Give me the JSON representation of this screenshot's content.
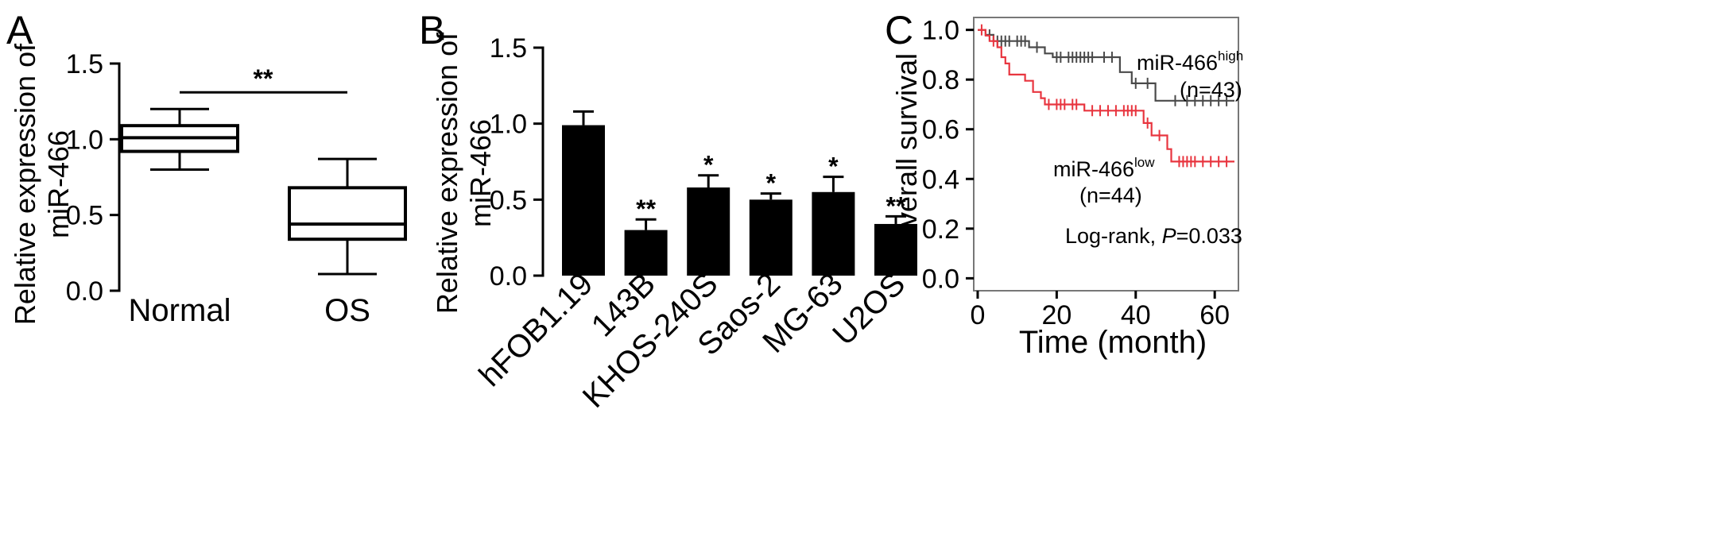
{
  "chart_data": [
    {
      "panel": "A",
      "type": "box",
      "ylabel_line1": "Relative expression of",
      "ylabel_line2": "miR-466",
      "ylim": [
        0,
        1.5
      ],
      "yticks": [
        "0.0",
        "0.5",
        "1.0",
        "1.5"
      ],
      "yticks_values": [
        0,
        0.5,
        1.0,
        1.5
      ],
      "categories": [
        "Normal",
        "OS"
      ],
      "boxes": [
        {
          "name": "Normal",
          "min": 0.8,
          "q1": 0.92,
          "median": 1.01,
          "q3": 1.09,
          "max": 1.2
        },
        {
          "name": "OS",
          "min": 0.11,
          "q1": 0.34,
          "median": 0.44,
          "q3": 0.68,
          "max": 0.87
        }
      ],
      "significance": {
        "label": "**",
        "y": 1.31
      }
    },
    {
      "panel": "B",
      "type": "bar",
      "ylabel_line1": "Relative expression of",
      "ylabel_line2": "miR-466",
      "ylim": [
        0,
        1.5
      ],
      "yticks": [
        "0.0",
        "0.5",
        "1.0",
        "1.5"
      ],
      "yticks_values": [
        0,
        0.5,
        1.0,
        1.5
      ],
      "categories": [
        "hFOB1.19",
        "143B",
        "KHOS-240S",
        "Saos-2",
        "MG-63",
        "U2OS"
      ],
      "values": [
        0.99,
        0.3,
        0.58,
        0.5,
        0.55,
        0.34
      ],
      "errors": [
        0.09,
        0.07,
        0.08,
        0.04,
        0.1,
        0.05
      ],
      "significance": [
        "",
        "**",
        "*",
        "*",
        "*",
        "**"
      ]
    },
    {
      "panel": "C",
      "type": "line",
      "ylabel": "Overall survival",
      "xlabel": "Time (month)",
      "xlim": [
        -1,
        66
      ],
      "ylim": [
        -0.05,
        1.05
      ],
      "xticks": [
        "0",
        "20",
        "40",
        "60"
      ],
      "xticks_values": [
        0,
        20,
        40,
        60
      ],
      "yticks": [
        "0.0",
        "0.2",
        "0.4",
        "0.6",
        "0.8",
        "1.0"
      ],
      "yticks_values": [
        0,
        0.2,
        0.4,
        0.6,
        0.8,
        1.0
      ],
      "series": [
        {
          "name_base": "miR-466",
          "name_sup": "high",
          "n_label": "(n=43)",
          "color": "#4a4a4a",
          "steps": [
            [
              0,
              1.0
            ],
            [
              2,
              0.98
            ],
            [
              4,
              0.955
            ],
            [
              13,
              0.93
            ],
            [
              17,
              0.905
            ],
            [
              19,
              0.89
            ],
            [
              36,
              0.83
            ],
            [
              39,
              0.785
            ],
            [
              45,
              0.715
            ],
            [
              65,
              0.715
            ]
          ],
          "censors": [
            3,
            5,
            6,
            7,
            8,
            10,
            11,
            12,
            15,
            20,
            21,
            23,
            24,
            25,
            26,
            27,
            28,
            29,
            32,
            34,
            40,
            43,
            50,
            53,
            55,
            57,
            59,
            61,
            63
          ]
        },
        {
          "name_base": "miR-466",
          "name_sup": "low",
          "n_label": "(n=44)",
          "color": "#e8353f",
          "steps": [
            [
              0,
              1.0
            ],
            [
              2,
              0.977
            ],
            [
              3,
              0.955
            ],
            [
              5,
              0.93
            ],
            [
              6,
              0.89
            ],
            [
              7,
              0.865
            ],
            [
              8,
              0.82
            ],
            [
              12,
              0.795
            ],
            [
              14,
              0.75
            ],
            [
              16,
              0.725
            ],
            [
              17,
              0.7
            ],
            [
              27,
              0.675
            ],
            [
              42,
              0.625
            ],
            [
              44,
              0.575
            ],
            [
              48,
              0.52
            ],
            [
              49,
              0.47
            ],
            [
              65,
              0.47
            ]
          ],
          "censors": [
            1,
            4,
            18,
            20,
            21,
            22,
            24,
            25,
            29,
            31,
            33,
            35,
            37,
            38,
            39,
            40,
            43,
            46,
            51,
            52,
            53,
            54,
            55,
            57,
            59,
            61,
            63
          ]
        }
      ],
      "annotation_prefix": "Log-rank, ",
      "annotation_p": "P",
      "annotation_value": "=0.033"
    }
  ]
}
